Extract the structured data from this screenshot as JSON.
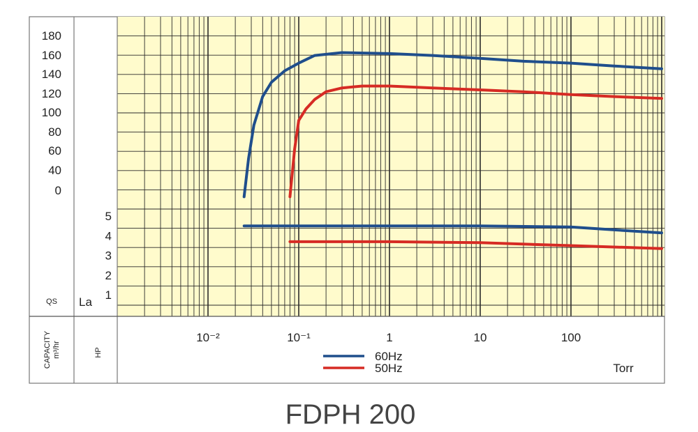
{
  "chart_data": {
    "type": "line",
    "title": "FDPH 200",
    "x_scale": "log",
    "x_unit": "Torr",
    "x_ticks": [
      "10⁻²",
      "10⁻¹",
      "1",
      "10",
      "100"
    ],
    "x_tick_values": [
      0.01,
      0.1,
      1,
      10,
      100
    ],
    "xlim": [
      0.001,
      1000
    ],
    "grid": true,
    "legend_position": "bottom-center",
    "series_colors": {
      "60Hz": "#1f4e8c",
      "50Hz": "#d62b24"
    },
    "panels": [
      {
        "name": "capacity",
        "ylabel": "CAPACITY",
        "yunit": "m³/hr",
        "y_symbol": "QS",
        "y_ticks": [
          "180",
          "160",
          "140",
          "120",
          "100",
          "80",
          "60",
          "40",
          "0"
        ],
        "series": [
          {
            "name": "60Hz",
            "x": [
              0.025,
              0.028,
              0.032,
              0.04,
              0.05,
              0.07,
              0.1,
              0.15,
              0.3,
              1,
              3,
              10,
              30,
              100,
              300,
              1000
            ],
            "y": [
              20,
              60,
              95,
              125,
              140,
              152,
              160,
              168,
              171,
              170,
              168,
              165,
              162,
              160,
              157,
              154
            ]
          },
          {
            "name": "50Hz",
            "x": [
              0.08,
              0.09,
              0.1,
              0.12,
              0.15,
              0.2,
              0.3,
              0.5,
              1,
              3,
              10,
              30,
              100,
              300,
              1000
            ],
            "y": [
              20,
              70,
              100,
              112,
              122,
              130,
              134,
              136,
              136,
              134,
              132,
              130,
              127,
              125,
              123
            ]
          }
        ]
      },
      {
        "name": "power",
        "ylabel": "HP",
        "y_symbol": "La",
        "y_ticks": [
          "5",
          "4",
          "3",
          "2",
          "1"
        ],
        "series": [
          {
            "name": "60Hz",
            "x": [
              0.025,
              0.1,
              1,
              10,
              100,
              300,
              1000
            ],
            "y": [
              4.5,
              4.5,
              4.5,
              4.5,
              4.45,
              4.3,
              4.15
            ]
          },
          {
            "name": "50Hz",
            "x": [
              0.08,
              1,
              10,
              100,
              1000
            ],
            "y": [
              3.7,
              3.7,
              3.65,
              3.5,
              3.35
            ]
          }
        ]
      }
    ],
    "legend": [
      "60Hz",
      "50Hz"
    ]
  }
}
